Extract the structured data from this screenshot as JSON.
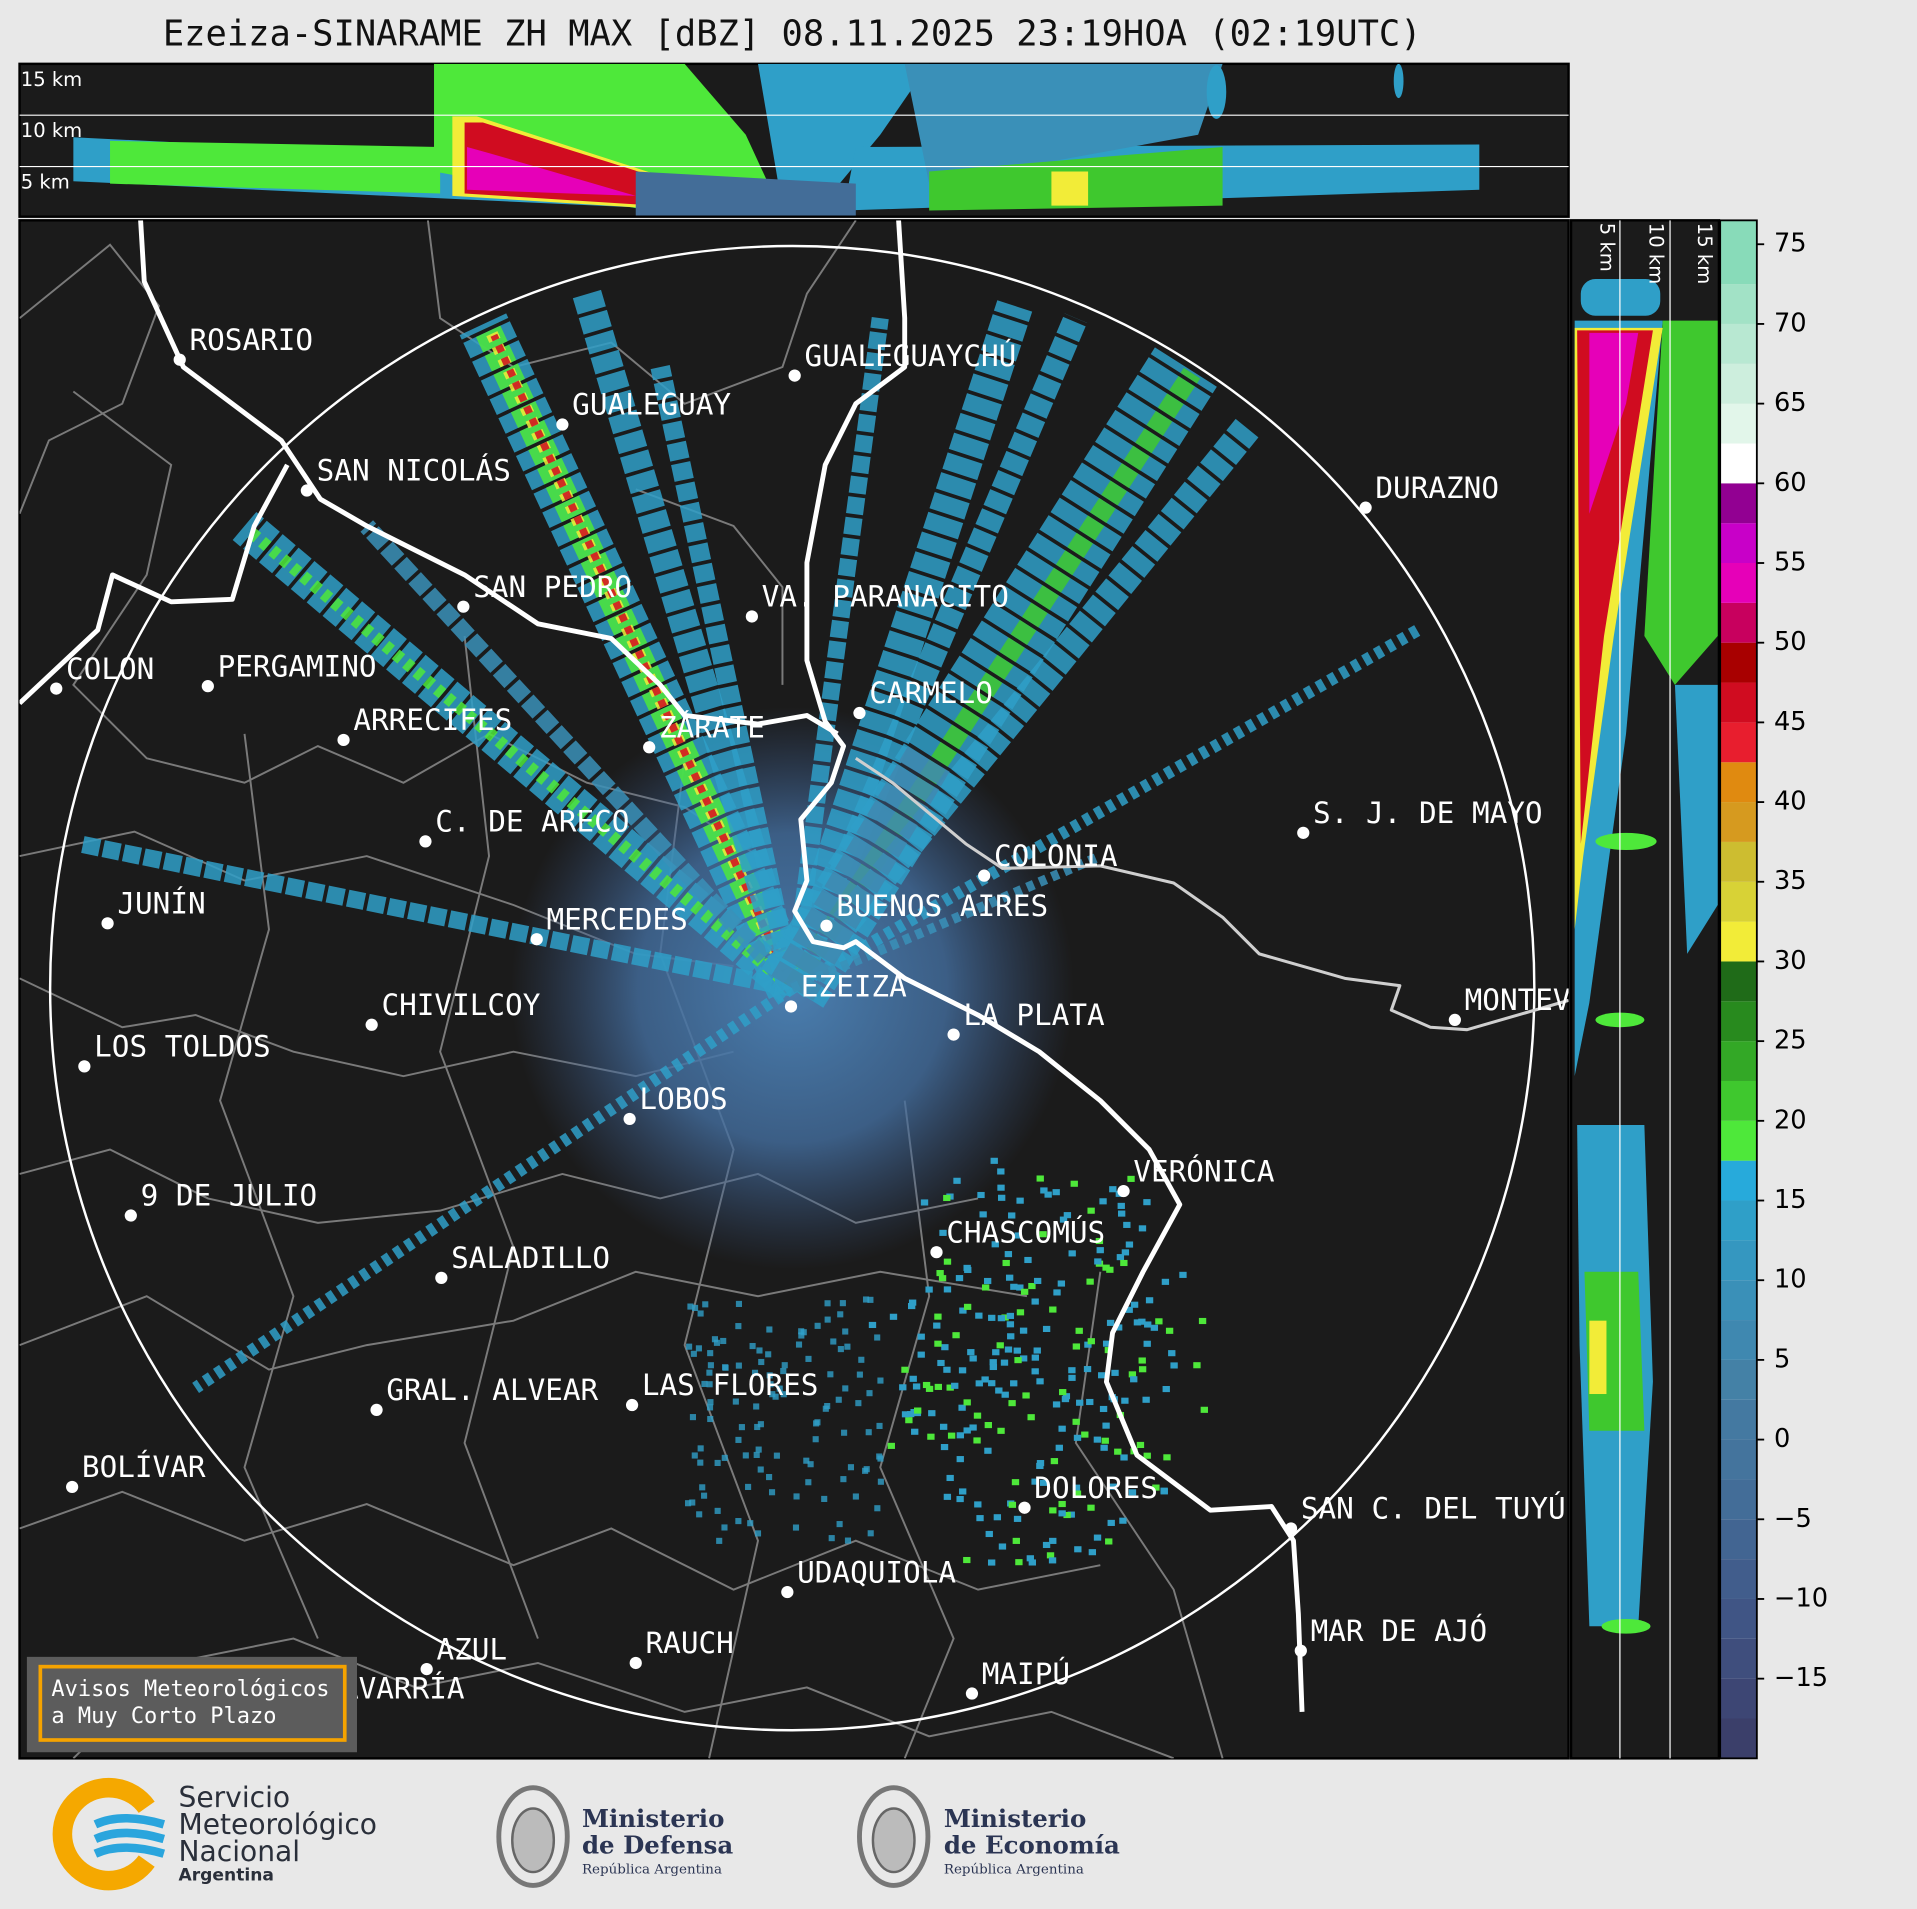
{
  "title": "Ezeiza-SINARAME ZH MAX [dBZ] 08.11.2025 23:19HOA (02:19UTC)",
  "profile_labels": {
    "top": [
      "15 km",
      "10 km",
      "5 km"
    ],
    "side": [
      "5 km",
      "10 km",
      "15 km"
    ]
  },
  "cities": [
    "ROSARIO",
    "GUALEGUAYCHÚ",
    "GUALEGUAY",
    "SAN NICOLÁS",
    "DURAZNO",
    "SAN PEDRO",
    "VA. PARANACITO",
    "COLON",
    "PERGAMINO",
    "CARMELO",
    "ARRECIFES",
    "ZÁRATE",
    "S. J. DE MAYO",
    "C. DE ARECO",
    "COLONIA",
    "BUENOS AIRES",
    "JUNÍN",
    "MERCEDES",
    "MONTEVIDEO",
    "EZEIZA",
    "CHIVILCOY",
    "LA PLATA",
    "LOS TOLDOS",
    "LOBOS",
    "VERÓNICA",
    "9 DE JULIO",
    "CHASCOMÚS",
    "SALADILLO",
    "GRAL. ALVEAR",
    "LAS FLORES",
    "BOLÍVAR",
    "DOLORES",
    "SAN C. DEL TUYÚ",
    "UDAQUIOLA",
    "MAR DE AJÓ",
    "AZUL",
    "RAUCH",
    "OLAVARRÍA",
    "MAIPÚ"
  ],
  "colorbar": {
    "lim": [
      -20,
      76.5
    ],
    "ticks": [
      {
        "value": -15,
        "label": "−15"
      },
      {
        "value": -10,
        "label": "−10"
      },
      {
        "value": -5,
        "label": "−5"
      },
      0,
      5,
      10,
      15,
      20,
      25,
      30,
      35,
      40,
      45,
      50,
      55,
      60,
      65,
      70,
      75
    ],
    "levels": [
      -20,
      -17.5,
      -15,
      -12.5,
      -10,
      -7.5,
      -5,
      -2.5,
      0,
      2.5,
      5,
      7.5,
      10,
      12.5,
      15,
      17.5,
      20,
      22.5,
      25,
      27.5,
      30,
      32.5,
      35,
      37.5,
      40,
      42.5,
      45,
      47.5,
      50,
      52.5,
      55,
      57.5,
      60,
      62.5,
      65,
      67.5,
      70,
      72.5,
      76.5
    ],
    "colors": [
      "#3b3f6a",
      "#3d4674",
      "#3f4e7d",
      "#405585",
      "#415d8c",
      "#426592",
      "#436d98",
      "#44749d",
      "#4479a1",
      "#4481a6",
      "#3f88b0",
      "#3a90b8",
      "#3597c0",
      "#2f9fc8",
      "#27aadb",
      "#4ee83a",
      "#3fc82e",
      "#33a826",
      "#288a1e",
      "#1f6b18",
      "#f2ec38",
      "#d8d236",
      "#cdbd30",
      "#d69a1f",
      "#e08a10",
      "#e81e2e",
      "#d00c20",
      "#a80000",
      "#c8005e",
      "#e600b8",
      "#c800c8",
      "#920092",
      "#ffffff",
      "#e2f6ea",
      "#cdeedd",
      "#b8e8d2",
      "#a2e2c6",
      "#88dbb9"
    ]
  },
  "warning": [
    "Avisos Meteorológicos",
    "a Muy Corto Plazo"
  ],
  "logos": [
    [
      "Servicio",
      "Meteorológico",
      "Nacional",
      "Argentina"
    ],
    [
      "Ministerio",
      "de Defensa",
      "República Argentina"
    ],
    [
      "Ministerio",
      "de Economía",
      "República Argentina"
    ]
  ]
}
